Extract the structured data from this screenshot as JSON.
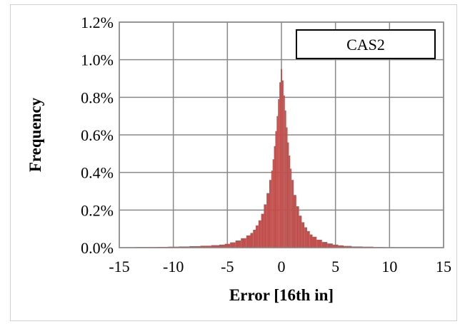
{
  "chart_data": {
    "type": "bar",
    "title": "",
    "xlabel": "Error [16th in]",
    "ylabel": "Frequency",
    "xlim": [
      -15,
      15
    ],
    "ylim": [
      0,
      0.012
    ],
    "grid": true,
    "x_ticks": [
      "-15",
      "-10",
      "-5",
      "0",
      "5",
      "10",
      "15"
    ],
    "y_ticks": [
      "0.0%",
      "0.2%",
      "0.4%",
      "0.6%",
      "0.8%",
      "1.0%",
      "1.2%"
    ],
    "legend": {
      "label": "CAS2",
      "placement": "top-right"
    },
    "bar_color": "#c0504d",
    "grid_color": "#888888",
    "series": [
      {
        "values_note": "histogram of error; x in 16th in, y as fraction",
        "x": [
          -14,
          -13,
          -12,
          -11,
          -10,
          -9,
          -8,
          -7,
          -6,
          -5.5,
          -5,
          -4.5,
          -4,
          -3.5,
          -3,
          -2.75,
          -2.5,
          -2.25,
          -2,
          -1.75,
          -1.5,
          -1.25,
          -1,
          -0.875,
          -0.75,
          -0.625,
          -0.5,
          -0.375,
          -0.25,
          -0.125,
          0,
          0.125,
          0.25,
          0.375,
          0.5,
          0.625,
          0.75,
          0.875,
          1,
          1.25,
          1.5,
          1.75,
          2,
          2.25,
          2.5,
          2.75,
          3,
          3.5,
          4,
          4.5,
          5,
          5.5,
          6,
          7,
          8,
          9,
          10
        ],
        "y": [
          2e-05,
          3e-05,
          3e-05,
          4e-05,
          5e-05,
          6e-05,
          8e-05,
          0.0001,
          0.00013,
          0.00016,
          0.0002,
          0.00028,
          0.00038,
          0.0005,
          0.00065,
          0.00078,
          0.00095,
          0.00118,
          0.00145,
          0.0018,
          0.0023,
          0.0029,
          0.0036,
          0.0041,
          0.0047,
          0.0054,
          0.0062,
          0.007,
          0.0079,
          0.0088,
          0.0095,
          0.0089,
          0.0081,
          0.0073,
          0.0064,
          0.0056,
          0.0049,
          0.0042,
          0.0036,
          0.0028,
          0.0022,
          0.0017,
          0.00135,
          0.00108,
          0.00088,
          0.0007,
          0.00058,
          0.00042,
          0.0003,
          0.00022,
          0.00016,
          0.00012,
          9e-05,
          6e-05,
          5e-05,
          3e-05,
          2e-05
        ]
      }
    ]
  }
}
